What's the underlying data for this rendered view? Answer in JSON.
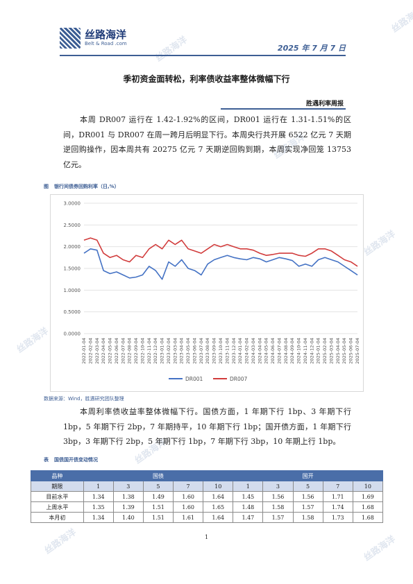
{
  "brand": {
    "name_cn": "丝路海洋",
    "name_en": "Belt & Road .com",
    "watermark_text": "丝路海洋"
  },
  "date": "2025 年 7 月 7 日",
  "title": "季初资金面转松，利率债收益率整体微幅下行",
  "subtitle": "胜遇利率周报",
  "paragraphs": [
    "本周 DR007 运行在 1.42-1.92%的区间，DR001 运行在 1.31-1.51%的区间，DR001 与 DR007 在周一跨月后明显下行。本周央行共开展 6522 亿元 7 天期逆回购操作，因本周共有 20275 亿元 7 天期逆回购到期，本周实现净回笼 13753 亿元。",
    "本周利率债收益率整体微幅下行。国债方面，1 年期下行 1bp、3 年期下行 1bp，5 年期下行 2bp，7 年期持平，10 年期下行 1bp；国开债方面，1 年期下行 3bp，3 年期下行 2bp，5 年期下行 1bp，7 年期下行 3bp，10 年期上行 1bp。"
  ],
  "figure": {
    "label": "图",
    "caption": "银行间债券回购利率（日,%）",
    "source": "数据来源：Wind，胜遇研究团队整理"
  },
  "table": {
    "label": "表",
    "caption": "国债国开债变动情况",
    "header_variety": "品种",
    "group_a": "国债",
    "group_b": "国开",
    "header_term": "期限",
    "terms": [
      "1",
      "3",
      "5",
      "7",
      "10",
      "1",
      "3",
      "5",
      "7",
      "10"
    ],
    "rows": [
      {
        "label": "目前水平",
        "values": [
          "1.34",
          "1.38",
          "1.49",
          "1.60",
          "1.64",
          "1.45",
          "1.56",
          "1.56",
          "1.71",
          "1.69"
        ]
      },
      {
        "label": "上周水平",
        "values": [
          "1.35",
          "1.39",
          "1.51",
          "1.60",
          "1.65",
          "1.48",
          "1.58",
          "1.57",
          "1.74",
          "1.68"
        ]
      },
      {
        "label": "本月初",
        "values": [
          "1.34",
          "1.40",
          "1.51",
          "1.61",
          "1.64",
          "1.47",
          "1.57",
          "1.58",
          "1.73",
          "1.68"
        ]
      }
    ]
  },
  "page_number": "1",
  "chart_data": {
    "type": "line",
    "title": "",
    "xlabel": "",
    "ylabel": "",
    "ylim": [
      0,
      3
    ],
    "yticks": [
      "0.0000",
      "0.5000",
      "1.0000",
      "1.5000",
      "2.0000",
      "2.5000",
      "3.0000"
    ],
    "x": [
      "2022-01-04",
      "2022-02-04",
      "2022-03-04",
      "2022-04-04",
      "2022-05-04",
      "2022-06-04",
      "2022-07-04",
      "2022-08-04",
      "2022-09-04",
      "2022-10-04",
      "2022-11-04",
      "2022-12-04",
      "2023-01-04",
      "2023-02-04",
      "2023-03-04",
      "2023-04-04",
      "2023-05-04",
      "2023-06-04",
      "2023-07-04",
      "2023-08-04",
      "2023-09-04",
      "2023-10-04",
      "2023-11-04",
      "2023-12-04",
      "2024-01-04",
      "2024-02-04",
      "2024-03-04",
      "2024-04-04",
      "2024-05-04",
      "2024-06-04",
      "2024-07-04",
      "2024-08-04",
      "2024-09-04",
      "2024-10-04",
      "2024-11-04",
      "2024-12-04",
      "2025-01-04",
      "2025-02-04",
      "2025-03-04",
      "2025-04-04",
      "2025-05-04",
      "2025-06-04",
      "2025-07-04"
    ],
    "series": [
      {
        "name": "DR001",
        "color": "#4472c4",
        "values": [
          1.85,
          1.95,
          1.92,
          1.45,
          1.38,
          1.42,
          1.35,
          1.28,
          1.3,
          1.35,
          1.55,
          1.45,
          1.25,
          1.65,
          1.55,
          1.7,
          1.5,
          1.45,
          1.35,
          1.6,
          1.7,
          1.75,
          1.8,
          1.75,
          1.72,
          1.7,
          1.75,
          1.72,
          1.65,
          1.7,
          1.75,
          1.72,
          1.68,
          1.55,
          1.6,
          1.55,
          1.7,
          1.75,
          1.7,
          1.65,
          1.55,
          1.45,
          1.35
        ]
      },
      {
        "name": "DR007",
        "color": "#d13b3b",
        "values": [
          2.15,
          2.2,
          2.15,
          1.85,
          1.75,
          1.8,
          1.7,
          1.65,
          1.8,
          1.75,
          1.95,
          2.05,
          1.95,
          2.15,
          2.05,
          2.15,
          1.95,
          1.9,
          1.85,
          1.95,
          2.05,
          2.0,
          2.05,
          2.0,
          1.95,
          1.95,
          1.92,
          1.85,
          1.8,
          1.82,
          1.85,
          1.85,
          1.85,
          1.8,
          1.78,
          1.85,
          1.95,
          1.95,
          1.9,
          1.8,
          1.7,
          1.65,
          1.55
        ]
      }
    ],
    "legend_position": "bottom",
    "grid": true
  }
}
